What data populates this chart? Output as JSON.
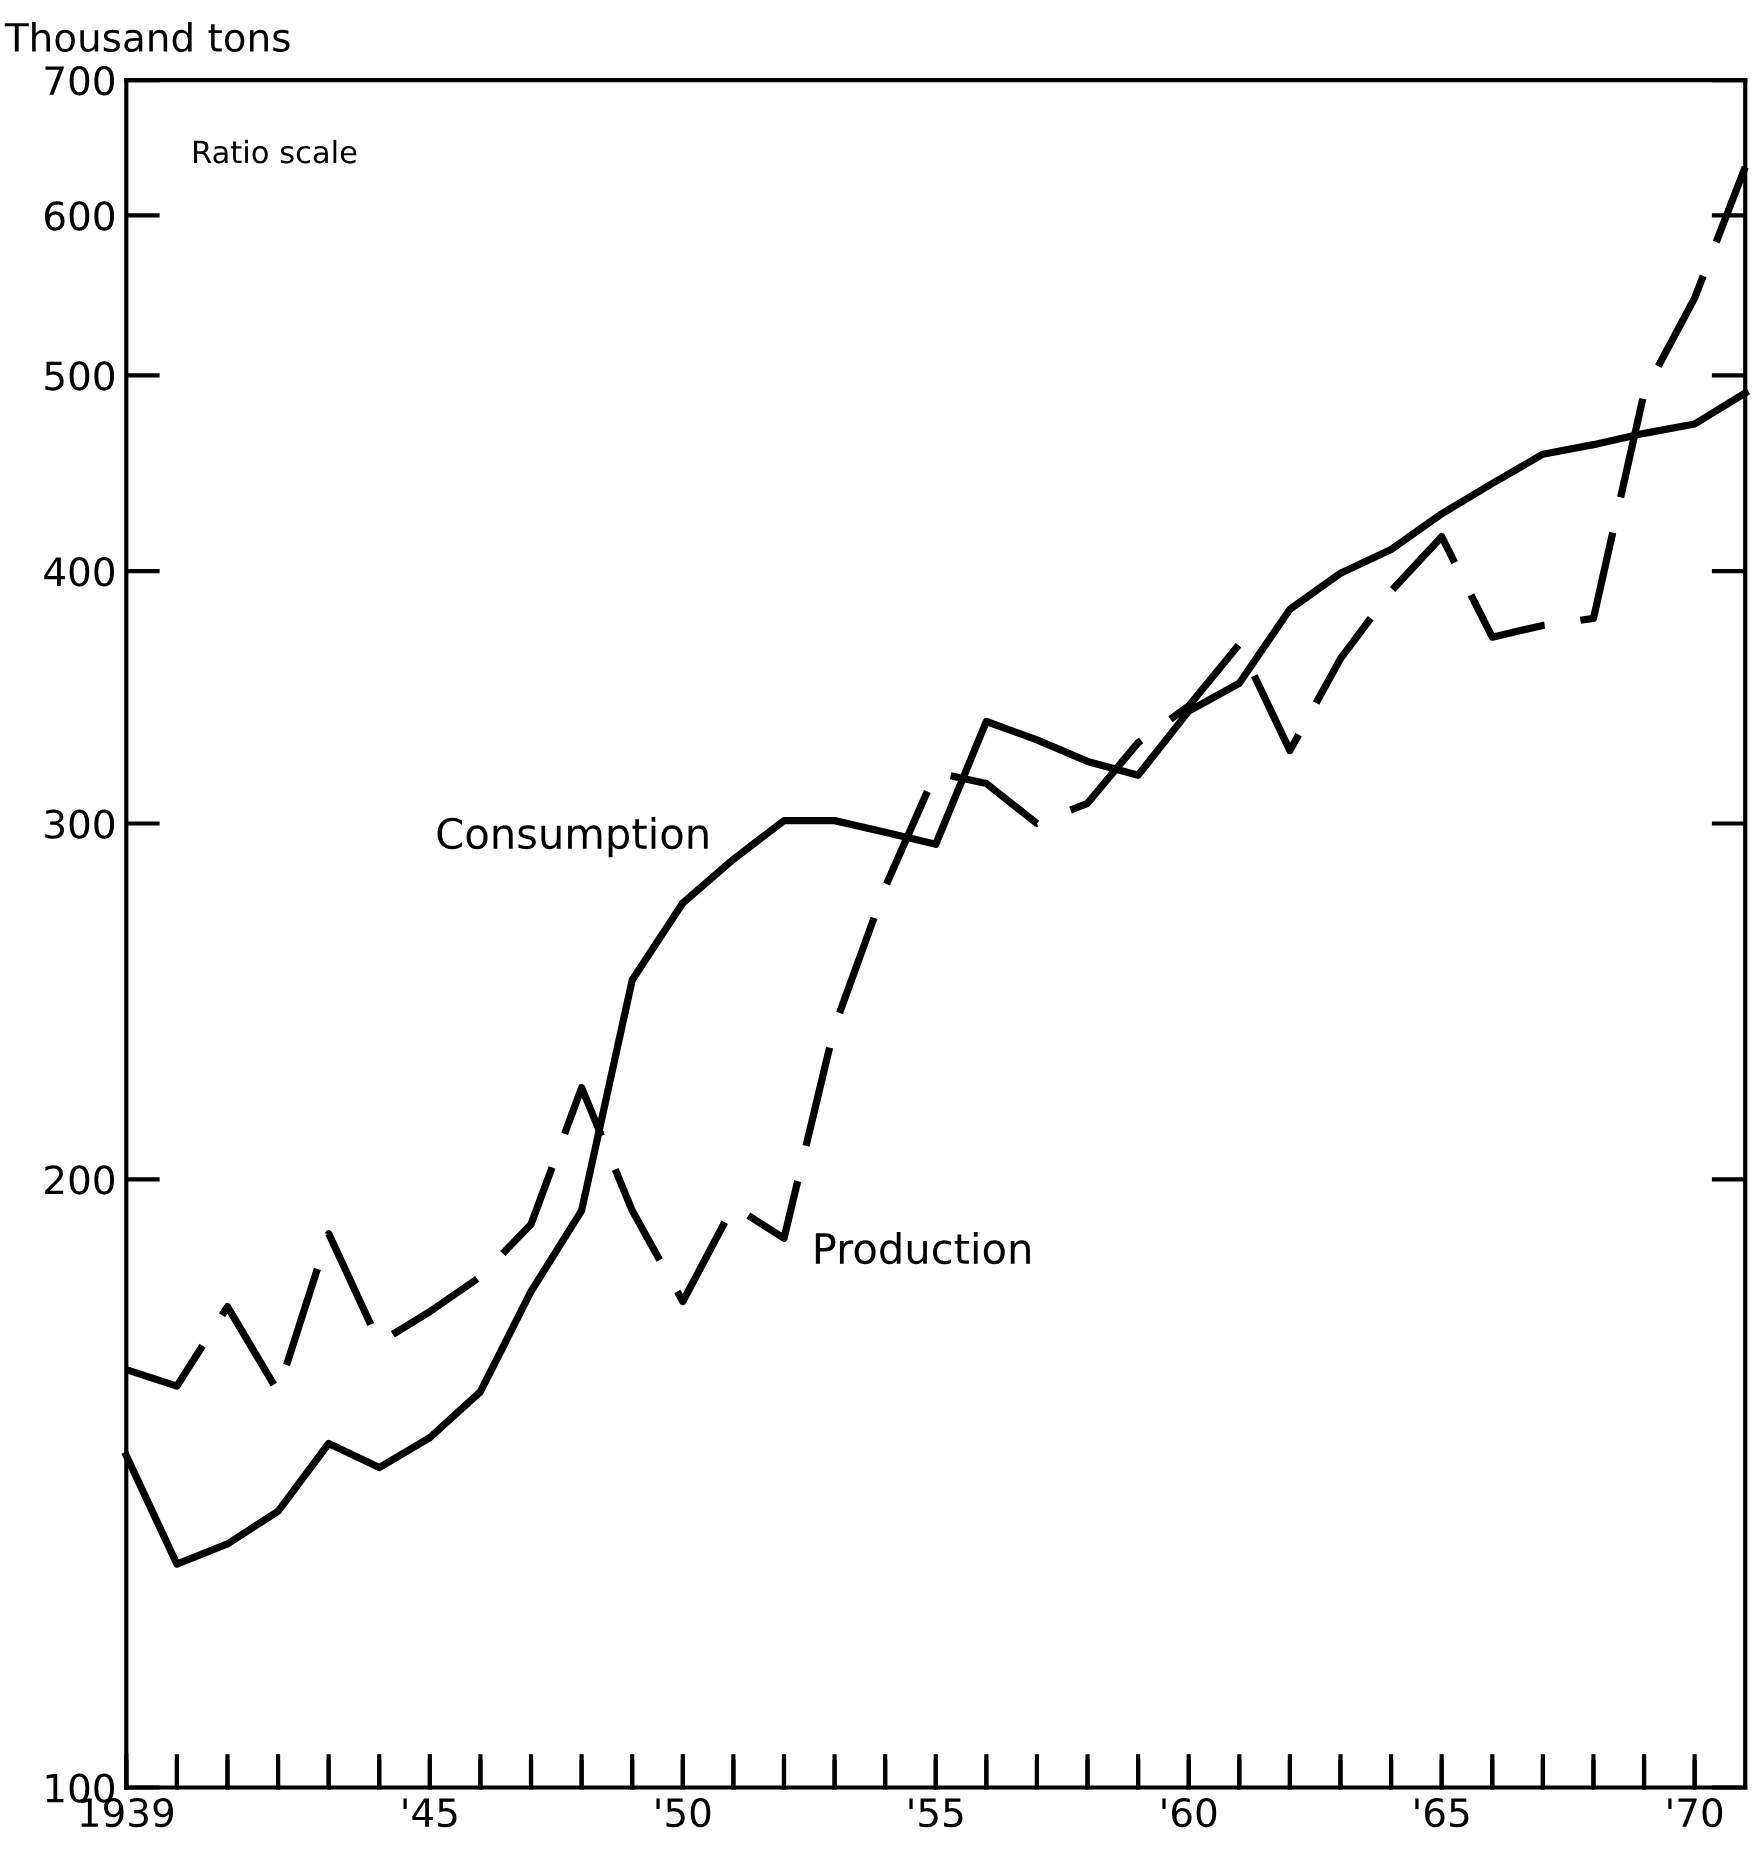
{
  "chart_data": {
    "type": "line",
    "ylabel": "Thousand tons",
    "log": "y",
    "grid": false,
    "legend": false,
    "marker": "none",
    "annotations": [
      "Ratio scale"
    ],
    "x": [
      1939,
      1940,
      1941,
      1942,
      1943,
      1944,
      1945,
      1946,
      1947,
      1948,
      1949,
      1950,
      1951,
      1952,
      1953,
      1954,
      1955,
      1956,
      1957,
      1958,
      1959,
      1960,
      1961,
      1962,
      1963,
      1964,
      1965,
      1966,
      1967,
      1968,
      1969,
      1970,
      1971
    ],
    "xlim": [
      1939,
      1971
    ],
    "xticks": [
      {
        "value": 1939,
        "label": "1939"
      },
      {
        "value": 1940,
        "label": null
      },
      {
        "value": 1941,
        "label": null
      },
      {
        "value": 1942,
        "label": null
      },
      {
        "value": 1943,
        "label": null
      },
      {
        "value": 1944,
        "label": null
      },
      {
        "value": 1945,
        "label": "'45"
      },
      {
        "value": 1946,
        "label": null
      },
      {
        "value": 1947,
        "label": null
      },
      {
        "value": 1948,
        "label": null
      },
      {
        "value": 1949,
        "label": null
      },
      {
        "value": 1950,
        "label": "'50"
      },
      {
        "value": 1951,
        "label": null
      },
      {
        "value": 1952,
        "label": null
      },
      {
        "value": 1953,
        "label": null
      },
      {
        "value": 1954,
        "label": null
      },
      {
        "value": 1955,
        "label": "'55"
      },
      {
        "value": 1956,
        "label": null
      },
      {
        "value": 1957,
        "label": null
      },
      {
        "value": 1958,
        "label": null
      },
      {
        "value": 1959,
        "label": null
      },
      {
        "value": 1960,
        "label": "'60"
      },
      {
        "value": 1961,
        "label": null
      },
      {
        "value": 1962,
        "label": null
      },
      {
        "value": 1963,
        "label": null
      },
      {
        "value": 1964,
        "label": null
      },
      {
        "value": 1965,
        "label": "'65"
      },
      {
        "value": 1966,
        "label": null
      },
      {
        "value": 1967,
        "label": null
      },
      {
        "value": 1968,
        "label": null
      },
      {
        "value": 1969,
        "label": null
      },
      {
        "value": 1970,
        "label": "'70"
      }
    ],
    "ylim": [
      100,
      700
    ],
    "yticks": [
      100,
      200,
      300,
      400,
      500,
      600,
      700
    ],
    "series": [
      {
        "name": "Consumption",
        "color": "#000000",
        "line_style": "solid",
        "values": [
          146,
          129,
          132,
          137,
          148,
          144,
          149,
          157,
          176,
          193,
          251,
          274,
          288,
          301,
          301,
          297,
          293,
          337,
          330,
          322,
          317,
          341,
          352,
          383,
          399,
          410,
          427,
          442,
          457,
          462,
          468,
          473,
          490
        ]
      },
      {
        "name": "Production",
        "color": "#000000",
        "line_style": "dashed",
        "values": [
          161,
          158,
          173,
          157,
          188,
          166,
          172,
          179,
          190,
          222,
          193,
          174,
          194,
          187,
          238,
          279,
          318,
          314,
          300,
          307,
          329,
          343,
          368,
          326,
          362,
          391,
          416,
          371,
          376,
          379,
          490,
          546,
          634
        ]
      }
    ]
  }
}
